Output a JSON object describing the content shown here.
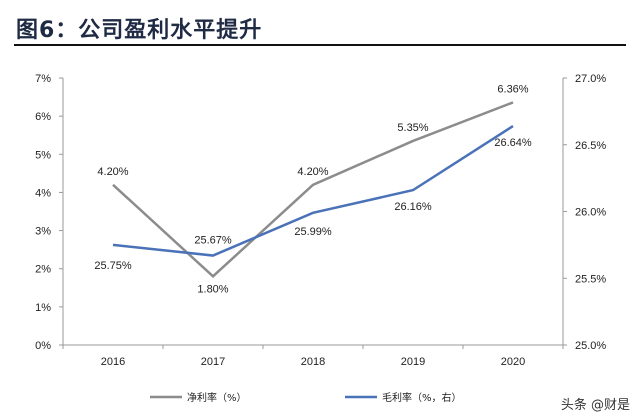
{
  "title": "图6：公司盈利水平提升",
  "watermark": "头条 @财是",
  "colors": {
    "net_margin": "#8c8c8c",
    "gross_margin": "#4a72b8",
    "title": "#1f2a44"
  },
  "chart_data": {
    "type": "line",
    "categories": [
      "2016",
      "2017",
      "2018",
      "2019",
      "2020"
    ],
    "series": [
      {
        "name": "净利率（%）",
        "axis": "left",
        "values": [
          4.2,
          1.8,
          4.2,
          5.35,
          6.36
        ],
        "labels": [
          "4.20%",
          "1.80%",
          "4.20%",
          "5.35%",
          "6.36%"
        ]
      },
      {
        "name": "毛利率（%，右）",
        "axis": "right",
        "values": [
          25.75,
          25.67,
          25.99,
          26.16,
          26.64
        ],
        "labels": [
          "25.75%",
          "25.67%",
          "25.99%",
          "26.16%",
          "26.64%"
        ]
      }
    ],
    "y_left": {
      "min": 0,
      "max": 7,
      "ticks": [
        "0%",
        "1%",
        "2%",
        "3%",
        "4%",
        "5%",
        "6%",
        "7%"
      ]
    },
    "y_right": {
      "min": 25.0,
      "max": 27.0,
      "ticks": [
        "25.0%",
        "25.5%",
        "26.0%",
        "26.5%",
        "27.0%"
      ]
    },
    "grid": false,
    "legend_position": "bottom"
  }
}
